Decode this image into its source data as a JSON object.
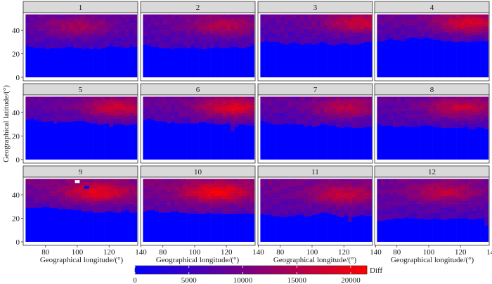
{
  "chart_data": {
    "type": "heatmap",
    "facet_labels": [
      "1",
      "2",
      "3",
      "4",
      "5",
      "6",
      "7",
      "8",
      "9",
      "10",
      "11",
      "12"
    ],
    "xlabel": "Geographical longitude/(°)",
    "ylabel": "Geographical latitude/(°)",
    "xlim": [
      66,
      138
    ],
    "ylim": [
      -3,
      55
    ],
    "x_ticks": [
      80,
      100,
      120,
      140
    ],
    "x_tick_labels": [
      "80",
      "100",
      "120",
      "140"
    ],
    "y_ticks": [
      0,
      20,
      40
    ],
    "y_tick_labels": [
      "0",
      "20",
      "40"
    ],
    "lon_range": [
      67.5,
      137.5
    ],
    "lat_range": [
      0,
      53.5
    ],
    "cell_size_deg": 2.5,
    "colorbar": {
      "title": "Diff",
      "min": 0,
      "max": 21500,
      "ticks": [
        0,
        5000,
        10000,
        15000,
        20000
      ],
      "tick_labels": [
        "0",
        "5000",
        "10000",
        "15000",
        "20000"
      ],
      "colors": [
        "#0000ff",
        "#ff0000"
      ]
    },
    "panels": [
      {
        "label": "1",
        "boundary": [
          26,
          26,
          25,
          25,
          25,
          24,
          25,
          25,
          25,
          25,
          26,
          26,
          25,
          25,
          24,
          25,
          24,
          25,
          24,
          25,
          26,
          27,
          26,
          26,
          25,
          25,
          26,
          26
        ],
        "peak": 14000,
        "baseline": 7500,
        "hot_lon": 100,
        "hot_lat": 43
      },
      {
        "label": "2",
        "boundary": [
          28,
          27,
          26,
          26,
          25,
          25,
          25,
          24,
          25,
          25,
          25,
          25,
          26,
          25,
          24,
          24,
          25,
          25,
          26,
          25,
          25,
          25,
          26,
          26,
          25,
          25,
          26,
          27
        ],
        "peak": 15500,
        "baseline": 8000,
        "hot_lon": 118,
        "hot_lat": 44
      },
      {
        "label": "3",
        "boundary": [
          30,
          31,
          30,
          30,
          30,
          29,
          28,
          29,
          30,
          29,
          28,
          29,
          29,
          28,
          29,
          30,
          29,
          28,
          27,
          28,
          29,
          29,
          28,
          28,
          28,
          29,
          30,
          30
        ],
        "peak": 17000,
        "baseline": 8000,
        "hot_lon": 130,
        "hot_lat": 46
      },
      {
        "label": "4",
        "boundary": [
          31,
          31,
          32,
          33,
          32,
          32,
          31,
          33,
          34,
          34,
          33,
          33,
          34,
          33,
          32,
          32,
          31,
          31,
          31,
          30,
          30,
          31,
          30,
          30,
          31,
          31,
          31,
          31
        ],
        "peak": 18000,
        "baseline": 8500,
        "hot_lon": 126,
        "hot_lat": 46
      },
      {
        "label": "5",
        "boundary": [
          34,
          35,
          34,
          33,
          32,
          32,
          33,
          31,
          32,
          32,
          32,
          32,
          33,
          33,
          33,
          32,
          31,
          31,
          30,
          30,
          31,
          28,
          30,
          30,
          30,
          29,
          30,
          30
        ],
        "peak": 17500,
        "baseline": 8500,
        "hot_lon": 126,
        "hot_lat": 44
      },
      {
        "label": "6",
        "boundary": [
          34,
          35,
          34,
          33,
          33,
          32,
          31,
          32,
          31,
          31,
          31,
          31,
          31,
          31,
          32,
          32,
          31,
          31,
          30,
          30,
          30,
          31,
          24,
          28,
          30,
          30,
          29,
          29
        ],
        "peak": 19000,
        "baseline": 8500,
        "hot_lon": 124,
        "hot_lat": 44
      },
      {
        "label": "7",
        "boundary": [
          33,
          32,
          31,
          30,
          30,
          30,
          31,
          30,
          30,
          30,
          30,
          28,
          29,
          28,
          29,
          30,
          30,
          29,
          29,
          28,
          27,
          28,
          28,
          27,
          27,
          27,
          28,
          28
        ],
        "peak": 15500,
        "baseline": 8000,
        "hot_lon": 122,
        "hot_lat": 44
      },
      {
        "label": "8",
        "boundary": [
          30,
          29,
          29,
          29,
          28,
          28,
          29,
          28,
          28,
          28,
          28,
          29,
          29,
          29,
          28,
          28,
          27,
          27,
          27,
          27,
          27,
          27,
          28,
          26,
          26,
          28,
          27,
          26
        ],
        "peak": 16500,
        "baseline": 8000,
        "hot_lon": 120,
        "hot_lat": 44
      },
      {
        "label": "9",
        "boundary": [
          29,
          29,
          29,
          29,
          30,
          30,
          29,
          29,
          28,
          28,
          28,
          28,
          27,
          27,
          26,
          26,
          26,
          25,
          25,
          25,
          26,
          26,
          25,
          25,
          26,
          27,
          25,
          25
        ],
        "peak": 20000,
        "baseline": 9500,
        "hot_lon": 113,
        "hot_lat": 42
      },
      {
        "label": "10",
        "boundary": [
          26,
          27,
          27,
          26,
          25,
          25,
          25,
          26,
          26,
          25,
          25,
          24,
          24,
          24,
          24,
          24,
          25,
          24,
          24,
          24,
          24,
          24,
          24,
          24,
          24,
          24,
          24,
          24
        ],
        "peak": 21000,
        "baseline": 10000,
        "hot_lon": 114,
        "hot_lat": 42
      },
      {
        "label": "11",
        "boundary": [
          24,
          23,
          23,
          22,
          22,
          21,
          21,
          22,
          22,
          23,
          23,
          22,
          22,
          23,
          24,
          25,
          25,
          24,
          23,
          22,
          21,
          22,
          17,
          21,
          22,
          23,
          22,
          22
        ],
        "peak": 17000,
        "baseline": 9000,
        "hot_lon": 120,
        "hot_lat": 40
      },
      {
        "label": "12",
        "boundary": [
          18,
          18,
          19,
          19,
          20,
          20,
          20,
          21,
          20,
          20,
          20,
          20,
          19,
          19,
          20,
          20,
          19,
          19,
          20,
          20,
          20,
          20,
          20,
          19,
          19,
          20,
          20,
          14
        ],
        "peak": 16000,
        "baseline": 8500,
        "hot_lon": 110,
        "hot_lat": 42
      }
    ],
    "special_cells": [
      {
        "panel": "9",
        "lon": 100,
        "lat": 51.25,
        "color": "#ffffff"
      },
      {
        "panel": "9",
        "lon": 106,
        "lat": 46.25,
        "color": "#0000ff"
      }
    ],
    "grid": false,
    "legend_position": "bottom"
  }
}
